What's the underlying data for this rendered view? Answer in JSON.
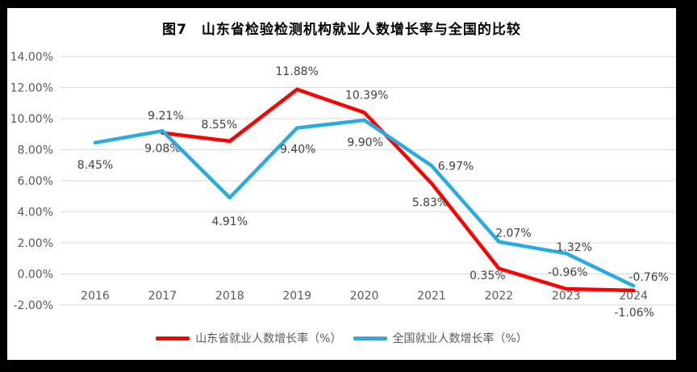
{
  "window": {
    "frame_color": "#000000",
    "background_color": "#ffffff"
  },
  "colors": {
    "gridline": "#d9d9d9",
    "axis_text": "#595959",
    "data_label_text": "#404040",
    "title_text": "#000000",
    "series_red": "#ff0000",
    "series_blue": "#29abe2"
  },
  "chart_data": {
    "type": "line",
    "title": "图7　山东省检验检测机构就业人数增长率与全国的比较",
    "categories": [
      "2016",
      "2017",
      "2018",
      "2019",
      "2020",
      "2021",
      "2022",
      "2023",
      "2024"
    ],
    "series": [
      {
        "name": "山东省就业人数增长率（%）",
        "color": "#ff0000",
        "values": [
          null,
          9.08,
          8.55,
          11.88,
          10.39,
          5.83,
          0.35,
          -0.96,
          -1.06
        ],
        "data_labels": [
          null,
          "9.08%",
          "8.55%",
          "11.88%",
          "10.39%",
          "5.83%",
          "0.35%",
          "-0.96%",
          "-1.06%"
        ],
        "label_offsets": [
          null,
          [
            0,
            19
          ],
          [
            -13,
            -21
          ],
          [
            0,
            -23
          ],
          [
            3,
            -22
          ],
          [
            -2,
            23
          ],
          [
            -14,
            8
          ],
          [
            2,
            -21
          ],
          [
            1,
            27
          ]
        ]
      },
      {
        "name": "全国就业人数增长率（%）",
        "color": "#29abe2",
        "values": [
          8.45,
          9.21,
          4.91,
          9.4,
          9.9,
          6.97,
          2.07,
          1.32,
          -0.76
        ],
        "data_labels": [
          "8.45%",
          "9.21%",
          "4.91%",
          "9.40%",
          "9.90%",
          "6.97%",
          "2.07%",
          "1.32%",
          "-0.76%"
        ],
        "label_offsets": [
          [
            0,
            27
          ],
          [
            4,
            -19
          ],
          [
            0,
            29
          ],
          [
            1,
            26
          ],
          [
            1,
            27
          ],
          [
            30,
            0
          ],
          [
            18,
            -11
          ],
          [
            10,
            -8
          ],
          [
            19,
            -11
          ]
        ]
      }
    ],
    "y_axis": {
      "min": -2,
      "max": 14,
      "step": 2,
      "tick_labels": [
        "14.00%",
        "12.00%",
        "10.00%",
        "8.00%",
        "6.00%",
        "4.00%",
        "2.00%",
        "0.00%",
        "-2.00%"
      ]
    },
    "x_axis": {
      "labels": [
        "2016",
        "2017",
        "2018",
        "2019",
        "2020",
        "2021",
        "2022",
        "2023",
        "2024"
      ]
    },
    "legend_position": "bottom",
    "grid": true
  }
}
